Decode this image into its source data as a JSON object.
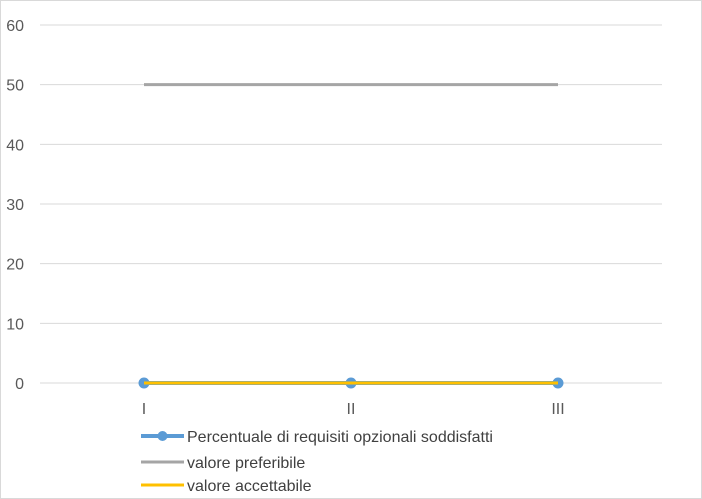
{
  "chart_data": {
    "type": "line",
    "categories": [
      "I",
      "II",
      "III"
    ],
    "ylim": [
      0,
      60
    ],
    "yticks": [
      0,
      10,
      20,
      30,
      40,
      50,
      60
    ],
    "grid": true,
    "legend_position": "bottom",
    "series": [
      {
        "name": "Percentuale di requisiti opzionali soddisfatti",
        "values": [
          0,
          0,
          0
        ],
        "color": "#5b9bd5",
        "markers": true
      },
      {
        "name": "valore preferibile",
        "values": [
          50,
          50,
          50
        ],
        "color": "#a5a5a5",
        "markers": false
      },
      {
        "name": "valore accettabile",
        "values": [
          0,
          0,
          0
        ],
        "color": "#ffc000",
        "markers": false
      }
    ]
  }
}
